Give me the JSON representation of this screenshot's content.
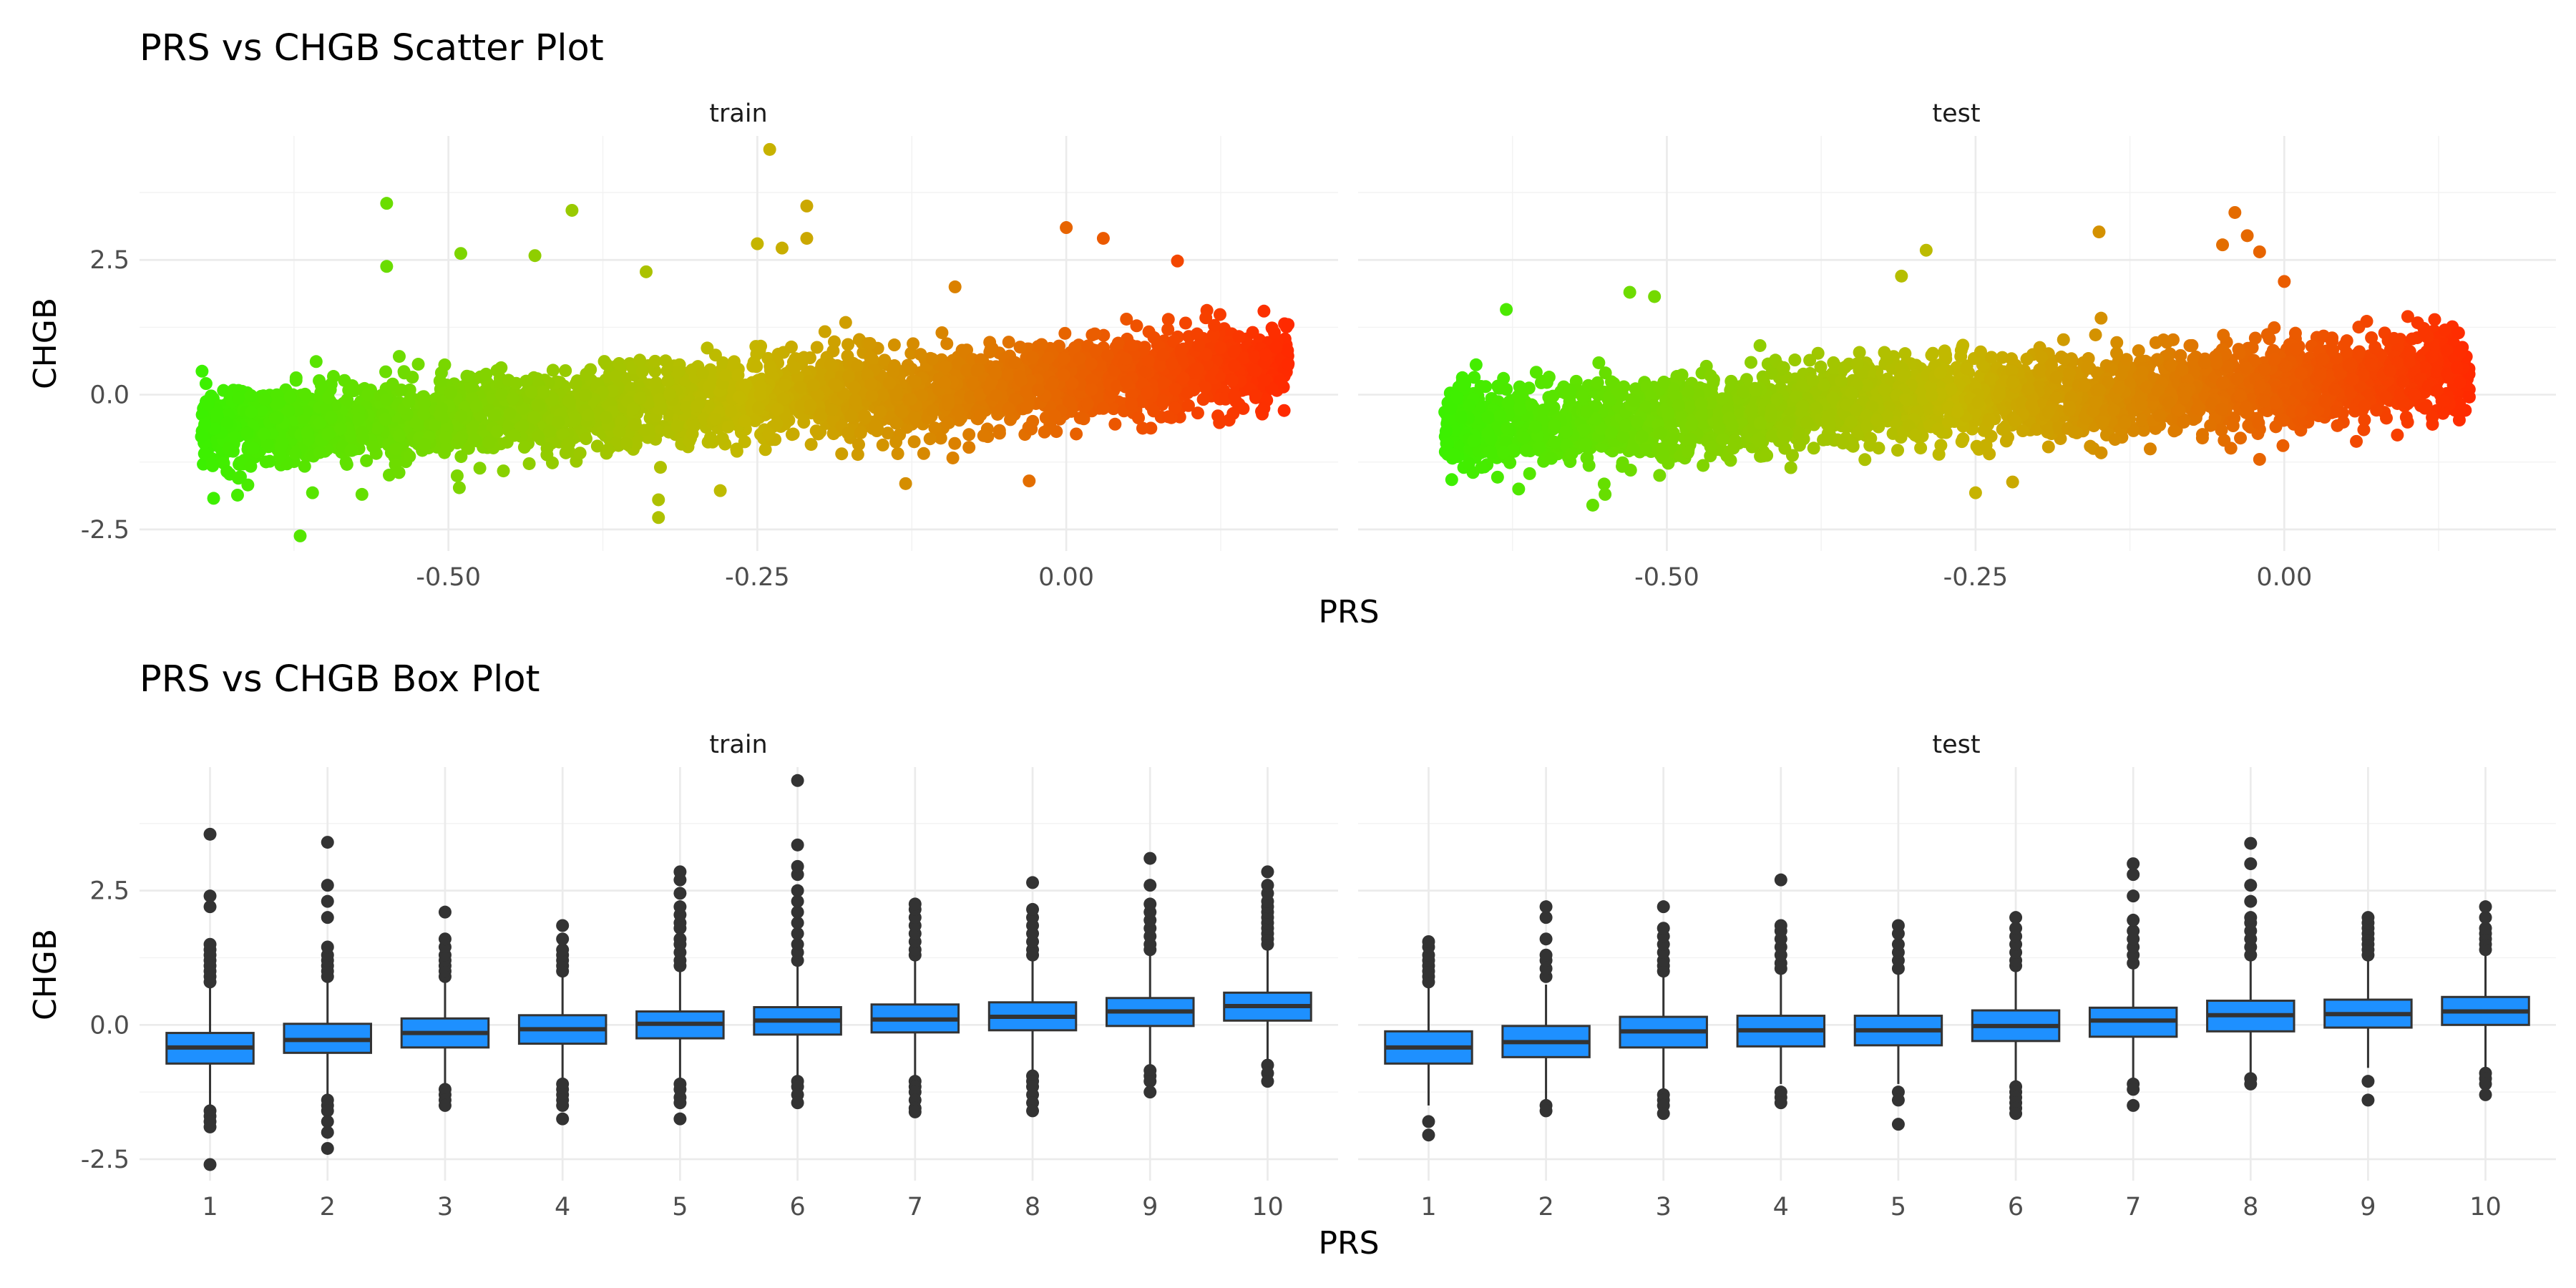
{
  "chart_data": [
    {
      "type": "scatter",
      "title": "PRS vs CHGB Scatter Plot",
      "xlabel": "PRS",
      "ylabel": "CHGB",
      "xlim": [
        -0.75,
        0.22
      ],
      "ylim": [
        -2.9,
        4.8
      ],
      "x_ticks": [
        -0.5,
        -0.25,
        0.0
      ],
      "x_tick_labels": [
        "-0.50",
        "-0.25",
        "0.00"
      ],
      "y_ticks": [
        -2.5,
        0.0,
        2.5
      ],
      "y_tick_labels": [
        "-2.5",
        "0.0",
        "2.5"
      ],
      "grid": true,
      "color_scale": {
        "low": "#3cf000",
        "mid": "#c4b800",
        "high": "#ff2a00"
      },
      "note": "Points colored by PRS value (green to red gradient); dense cloud, slight positive trend",
      "panels": [
        {
          "label": "train",
          "trend": {
            "x": [
              -0.66,
              -0.55,
              -0.45,
              -0.35,
              -0.25,
              -0.15,
              -0.05,
              0.05,
              0.13
            ],
            "y": [
              -0.6,
              -0.5,
              -0.4,
              -0.25,
              -0.05,
              0.0,
              0.15,
              0.35,
              0.5
            ]
          },
          "x_range": [
            -0.7,
            0.18
          ],
          "points": [
            {
              "x": -0.55,
              "y": 3.55
            },
            {
              "x": -0.4,
              "y": 3.42
            },
            {
              "x": -0.24,
              "y": 4.55
            },
            {
              "x": -0.21,
              "y": 3.5
            },
            {
              "x": -0.49,
              "y": 2.62
            },
            {
              "x": -0.43,
              "y": 2.58
            },
            {
              "x": -0.25,
              "y": 2.8
            },
            {
              "x": -0.23,
              "y": 2.72
            },
            {
              "x": -0.55,
              "y": 2.38
            },
            {
              "x": -0.34,
              "y": 2.28
            },
            {
              "x": -0.21,
              "y": 2.9
            },
            {
              "x": 0.0,
              "y": 3.1
            },
            {
              "x": 0.03,
              "y": 2.9
            },
            {
              "x": 0.09,
              "y": 2.48
            },
            {
              "x": -0.09,
              "y": 2.0
            },
            {
              "x": 0.17,
              "y": 0.88
            },
            {
              "x": 0.16,
              "y": 1.55
            },
            {
              "x": 0.16,
              "y": -0.25
            },
            {
              "x": -0.62,
              "y": -2.62
            },
            {
              "x": -0.67,
              "y": -1.55
            },
            {
              "x": -0.66,
              "y": -1.33
            },
            {
              "x": -0.33,
              "y": -2.28
            },
            {
              "x": -0.33,
              "y": -1.95
            },
            {
              "x": -0.13,
              "y": -1.65
            },
            {
              "x": -0.28,
              "y": -1.78
            },
            {
              "x": -0.57,
              "y": -1.85
            },
            {
              "x": -0.61,
              "y": -1.82
            },
            {
              "x": -0.03,
              "y": -1.6
            }
          ]
        },
        {
          "label": "test",
          "trend": {
            "x": [
              -0.68,
              -0.58,
              -0.48,
              -0.38,
              -0.28,
              -0.18,
              -0.08,
              0.02,
              0.12
            ],
            "y": [
              -0.6,
              -0.5,
              -0.4,
              -0.3,
              -0.05,
              -0.05,
              0.05,
              0.25,
              0.4
            ]
          },
          "x_range": [
            -0.68,
            0.15
          ],
          "points": [
            {
              "x": -0.53,
              "y": 1.9
            },
            {
              "x": -0.51,
              "y": 1.82
            },
            {
              "x": -0.29,
              "y": 2.68
            },
            {
              "x": -0.15,
              "y": 3.02
            },
            {
              "x": -0.04,
              "y": 3.38
            },
            {
              "x": -0.05,
              "y": 2.78
            },
            {
              "x": -0.03,
              "y": 2.95
            },
            {
              "x": -0.02,
              "y": 2.65
            },
            {
              "x": 0.0,
              "y": 2.1
            },
            {
              "x": -0.31,
              "y": 2.2
            },
            {
              "x": 0.13,
              "y": 1.2
            },
            {
              "x": 0.14,
              "y": 0.5
            },
            {
              "x": 0.1,
              "y": 1.45
            },
            {
              "x": -0.63,
              "y": 1.58
            },
            {
              "x": -0.63,
              "y": 0.1
            },
            {
              "x": -0.67,
              "y": -0.05
            },
            {
              "x": -0.62,
              "y": -1.75
            },
            {
              "x": -0.56,
              "y": -2.05
            },
            {
              "x": -0.55,
              "y": -1.85
            },
            {
              "x": -0.25,
              "y": -1.82
            },
            {
              "x": -0.22,
              "y": -1.62
            },
            {
              "x": -0.65,
              "y": -1.35
            },
            {
              "x": -0.02,
              "y": -1.2
            },
            {
              "x": 0.12,
              "y": -0.55
            }
          ]
        }
      ]
    },
    {
      "type": "box",
      "title": "PRS vs CHGB Box Plot",
      "xlabel": "PRS",
      "ylabel": "CHGB",
      "categories": [
        "1",
        "2",
        "3",
        "4",
        "5",
        "6",
        "7",
        "8",
        "9",
        "10"
      ],
      "ylim": [
        -2.9,
        4.8
      ],
      "y_ticks": [
        -2.5,
        0.0,
        2.5
      ],
      "y_tick_labels": [
        "-2.5",
        "0.0",
        "2.5"
      ],
      "grid": true,
      "box_color": "#1e90ff",
      "panels": [
        {
          "label": "train",
          "boxes": [
            {
              "q1": -0.72,
              "median": -0.42,
              "q3": -0.15,
              "whisker_low": -1.5,
              "whisker_high": 0.7,
              "outliers_high": [
                0.8,
                0.9,
                1.0,
                1.1,
                1.2,
                1.3,
                1.4,
                1.5,
                2.2,
                2.4,
                3.55
              ],
              "outliers_low": [
                -1.6,
                -1.7,
                -1.8,
                -1.9,
                -2.6
              ]
            },
            {
              "q1": -0.52,
              "median": -0.28,
              "q3": 0.02,
              "whisker_low": -1.3,
              "whisker_high": 0.8,
              "outliers_high": [
                0.9,
                1.0,
                1.1,
                1.2,
                1.3,
                1.45,
                2.0,
                2.3,
                2.6,
                3.4
              ],
              "outliers_low": [
                -1.4,
                -1.5,
                -1.6,
                -1.8,
                -2.0,
                -2.3
              ]
            },
            {
              "q1": -0.42,
              "median": -0.15,
              "q3": 0.12,
              "whisker_low": -1.1,
              "whisker_high": 0.8,
              "outliers_high": [
                0.9,
                1.0,
                1.1,
                1.2,
                1.3,
                1.45,
                1.6,
                2.1
              ],
              "outliers_low": [
                -1.2,
                -1.3,
                -1.4,
                -1.5
              ]
            },
            {
              "q1": -0.35,
              "median": -0.08,
              "q3": 0.18,
              "whisker_low": -1.0,
              "whisker_high": 0.9,
              "outliers_high": [
                1.0,
                1.1,
                1.2,
                1.3,
                1.4,
                1.6,
                1.85
              ],
              "outliers_low": [
                -1.1,
                -1.2,
                -1.3,
                -1.4,
                -1.5,
                -1.75
              ]
            },
            {
              "q1": -0.25,
              "median": 0.02,
              "q3": 0.25,
              "whisker_low": -1.0,
              "whisker_high": 1.0,
              "outliers_high": [
                1.1,
                1.2,
                1.35,
                1.5,
                1.6,
                1.8,
                1.9,
                2.05,
                2.2,
                2.45,
                2.7,
                2.85
              ],
              "outliers_low": [
                -1.1,
                -1.2,
                -1.35,
                -1.45,
                -1.75
              ]
            },
            {
              "q1": -0.18,
              "median": 0.08,
              "q3": 0.33,
              "whisker_low": -0.95,
              "whisker_high": 1.1,
              "outliers_high": [
                1.2,
                1.35,
                1.5,
                1.7,
                1.9,
                2.1,
                2.3,
                2.5,
                2.8,
                2.95,
                3.35,
                4.55
              ],
              "outliers_low": [
                -1.05,
                -1.15,
                -1.3,
                -1.45
              ]
            },
            {
              "q1": -0.14,
              "median": 0.1,
              "q3": 0.38,
              "whisker_low": -0.95,
              "whisker_high": 1.2,
              "outliers_high": [
                1.3,
                1.4,
                1.55,
                1.7,
                1.85,
                2.0,
                2.15,
                2.25
              ],
              "outliers_low": [
                -1.05,
                -1.15,
                -1.25,
                -1.4,
                -1.55,
                -1.62
              ]
            },
            {
              "q1": -0.1,
              "median": 0.15,
              "q3": 0.42,
              "whisker_low": -0.9,
              "whisker_high": 1.2,
              "outliers_high": [
                1.3,
                1.4,
                1.55,
                1.7,
                1.85,
                2.0,
                2.15,
                2.65
              ],
              "outliers_low": [
                -0.95,
                -1.05,
                -1.15,
                -1.3,
                -1.45,
                -1.6
              ]
            },
            {
              "q1": -0.02,
              "median": 0.25,
              "q3": 0.5,
              "whisker_low": -0.75,
              "whisker_high": 1.3,
              "outliers_high": [
                1.4,
                1.5,
                1.65,
                1.8,
                1.95,
                2.1,
                2.25,
                2.6,
                3.1
              ],
              "outliers_low": [
                -0.85,
                -0.95,
                -1.05,
                -1.25
              ]
            },
            {
              "q1": 0.08,
              "median": 0.35,
              "q3": 0.6,
              "whisker_low": -0.65,
              "whisker_high": 1.4,
              "outliers_high": [
                1.5,
                1.6,
                1.7,
                1.8,
                1.9,
                2.0,
                2.1,
                2.2,
                2.3,
                2.45,
                2.6,
                2.85
              ],
              "outliers_low": [
                -0.75,
                -0.9,
                -1.05
              ]
            }
          ]
        },
        {
          "label": "test",
          "boxes": [
            {
              "q1": -0.72,
              "median": -0.42,
              "q3": -0.12,
              "whisker_low": -1.5,
              "whisker_high": 0.7,
              "outliers_high": [
                0.8,
                0.9,
                1.0,
                1.1,
                1.2,
                1.3,
                1.45,
                1.55
              ],
              "outliers_low": [
                -1.8,
                -2.05
              ]
            },
            {
              "q1": -0.6,
              "median": -0.32,
              "q3": -0.02,
              "whisker_low": -1.4,
              "whisker_high": 0.75,
              "outliers_high": [
                0.9,
                1.05,
                1.2,
                1.3,
                1.6,
                2.0,
                2.2
              ],
              "outliers_low": [
                -1.5,
                -1.6
              ]
            },
            {
              "q1": -0.42,
              "median": -0.12,
              "q3": 0.15,
              "whisker_low": -1.2,
              "whisker_high": 0.9,
              "outliers_high": [
                1.0,
                1.1,
                1.2,
                1.35,
                1.5,
                1.65,
                1.8,
                2.2
              ],
              "outliers_low": [
                -1.3,
                -1.4,
                -1.5,
                -1.65
              ]
            },
            {
              "q1": -0.4,
              "median": -0.1,
              "q3": 0.17,
              "whisker_low": -1.1,
              "whisker_high": 0.95,
              "outliers_high": [
                1.05,
                1.15,
                1.3,
                1.45,
                1.6,
                1.75,
                1.85,
                2.7
              ],
              "outliers_low": [
                -1.25,
                -1.35,
                -1.45
              ]
            },
            {
              "q1": -0.38,
              "median": -0.1,
              "q3": 0.17,
              "whisker_low": -1.1,
              "whisker_high": 0.95,
              "outliers_high": [
                1.05,
                1.2,
                1.35,
                1.5,
                1.7,
                1.85
              ],
              "outliers_low": [
                -1.25,
                -1.4,
                -1.85
              ]
            },
            {
              "q1": -0.3,
              "median": -0.02,
              "q3": 0.27,
              "whisker_low": -1.05,
              "whisker_high": 1.0,
              "outliers_high": [
                1.1,
                1.2,
                1.35,
                1.5,
                1.65,
                1.8,
                2.0
              ],
              "outliers_low": [
                -1.15,
                -1.25,
                -1.35,
                -1.45,
                -1.55,
                -1.65
              ]
            },
            {
              "q1": -0.22,
              "median": 0.08,
              "q3": 0.32,
              "whisker_low": -1.0,
              "whisker_high": 1.05,
              "outliers_high": [
                1.15,
                1.3,
                1.45,
                1.6,
                1.75,
                1.95,
                2.4,
                2.8,
                3.0
              ],
              "outliers_low": [
                -1.1,
                -1.2,
                -1.5
              ]
            },
            {
              "q1": -0.12,
              "median": 0.18,
              "q3": 0.45,
              "whisker_low": -0.9,
              "whisker_high": 1.2,
              "outliers_high": [
                1.3,
                1.45,
                1.6,
                1.75,
                1.9,
                2.0,
                2.3,
                2.6,
                3.0,
                3.38
              ],
              "outliers_low": [
                -1.0,
                -1.1
              ]
            },
            {
              "q1": -0.05,
              "median": 0.2,
              "q3": 0.47,
              "whisker_low": -0.8,
              "whisker_high": 1.2,
              "outliers_high": [
                1.3,
                1.4,
                1.5,
                1.6,
                1.7,
                1.8,
                1.9,
                2.0
              ],
              "outliers_low": [
                -1.05,
                -1.4
              ]
            },
            {
              "q1": 0.0,
              "median": 0.25,
              "q3": 0.52,
              "whisker_low": -0.8,
              "whisker_high": 1.3,
              "outliers_high": [
                1.4,
                1.5,
                1.6,
                1.7,
                1.8,
                2.0,
                2.2
              ],
              "outliers_low": [
                -0.9,
                -1.0,
                -1.1,
                -1.3
              ]
            }
          ]
        }
      ]
    }
  ]
}
